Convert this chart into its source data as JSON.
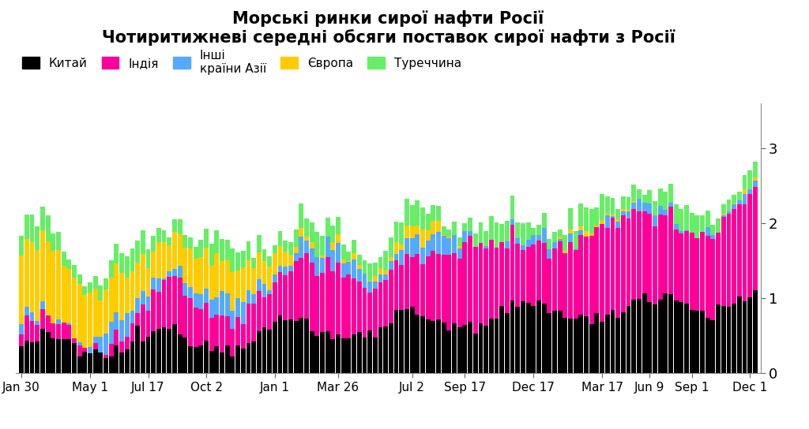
{
  "title_line1": "Морські ринки сирої нафти Росії",
  "title_line2": "Чотиритижневі середні обсяги поставок сирої нафти з Росії",
  "legend_labels": [
    "Китай",
    "Індія",
    "Інші\nкраїни Азії",
    "Європа",
    "Туреччина"
  ],
  "colors": [
    "#000000",
    "#ff0099",
    "#55aaff",
    "#ffcc00",
    "#66ee66"
  ],
  "x_tick_labels": [
    "Jan 30",
    "May 1",
    "Jul 17",
    "Oct 2",
    "Jan 1",
    "Mar 26",
    "Jul 2",
    "Sep 17",
    "Dec 17",
    "Mar 17",
    "Jun 9",
    "Sep 1",
    "Dec 1"
  ],
  "x_tick_positions": [
    0,
    13,
    24,
    35,
    48,
    60,
    74,
    84,
    97,
    110,
    119,
    127,
    138
  ],
  "ylim": [
    0,
    3.6
  ],
  "yticks": [
    0,
    1,
    2,
    3
  ],
  "n_bars": 140,
  "background_color": "#ffffff"
}
